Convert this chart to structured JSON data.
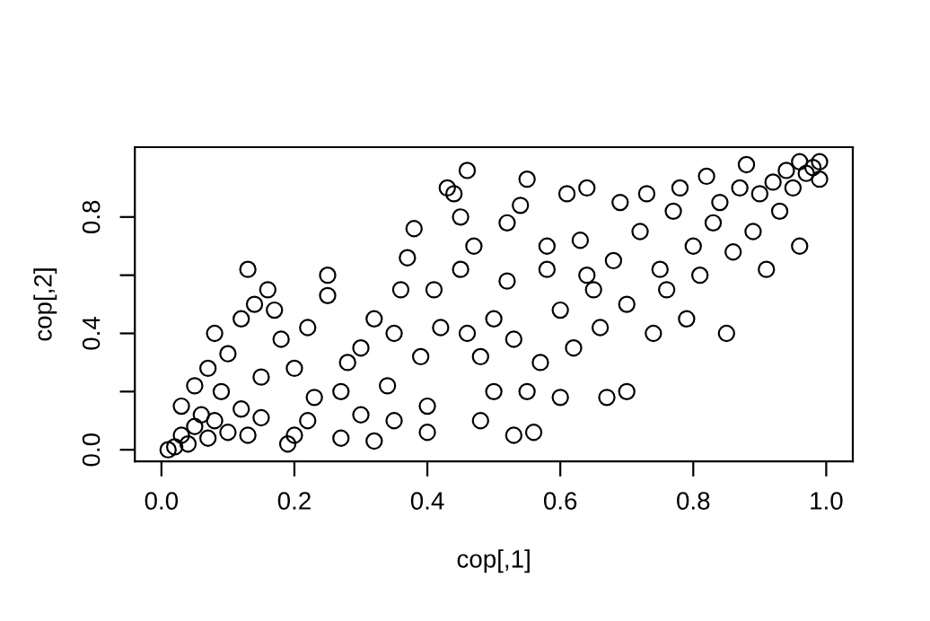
{
  "chart_data": {
    "type": "scatter",
    "xlabel": "cop[,1]",
    "ylabel": "cop[,2]",
    "marker": "circle",
    "grid": false,
    "legend": false,
    "xlim": [
      -0.04,
      1.04
    ],
    "ylim": [
      -0.04,
      1.04
    ],
    "xticks": [
      {
        "value": 0,
        "label": "0.0"
      },
      {
        "value": 0.2,
        "label": "0.2"
      },
      {
        "value": 0.4,
        "label": "0.4"
      },
      {
        "value": 0.6,
        "label": "0.6"
      },
      {
        "value": 0.8,
        "label": "0.8"
      },
      {
        "value": 1,
        "label": "1.0"
      }
    ],
    "yticks": [
      {
        "value": 0,
        "label": "0.0"
      },
      {
        "value": 0.2,
        "label": null
      },
      {
        "value": 0.4,
        "label": "0.4"
      },
      {
        "value": 0.6,
        "label": null
      },
      {
        "value": 0.8,
        "label": "0.8"
      }
    ],
    "series": [
      {
        "color": "#000000",
        "x": [
          0.01,
          0.02,
          0.03,
          0.04,
          0.05,
          0.06,
          0.07,
          0.08,
          0.1,
          0.12,
          0.13,
          0.15,
          0.03,
          0.05,
          0.07,
          0.08,
          0.1,
          0.12,
          0.14,
          0.13,
          0.16,
          0.17,
          0.18,
          0.19,
          0.2,
          0.22,
          0.23,
          0.2,
          0.22,
          0.25,
          0.27,
          0.28,
          0.25,
          0.3,
          0.3,
          0.32,
          0.32,
          0.34,
          0.35,
          0.36,
          0.37,
          0.38,
          0.39,
          0.4,
          0.4,
          0.42,
          0.43,
          0.44,
          0.45,
          0.45,
          0.46,
          0.47,
          0.48,
          0.48,
          0.5,
          0.5,
          0.52,
          0.53,
          0.54,
          0.55,
          0.55,
          0.56,
          0.57,
          0.58,
          0.6,
          0.61,
          0.62,
          0.63,
          0.64,
          0.65,
          0.66,
          0.67,
          0.68,
          0.69,
          0.7,
          0.7,
          0.72,
          0.73,
          0.74,
          0.75,
          0.76,
          0.77,
          0.78,
          0.79,
          0.8,
          0.81,
          0.82,
          0.83,
          0.84,
          0.85,
          0.86,
          0.87,
          0.88,
          0.89,
          0.9,
          0.91,
          0.92,
          0.93,
          0.94,
          0.95,
          0.96,
          0.97,
          0.98,
          0.99,
          0.99,
          0.96,
          0.27,
          0.6,
          0.58,
          0.41,
          0.35,
          0.15,
          0.09,
          0.52,
          0.64,
          0.46,
          0.53
        ],
        "values": [
          0.0,
          0.01,
          0.05,
          0.02,
          0.08,
          0.12,
          0.04,
          0.1,
          0.06,
          0.14,
          0.05,
          0.11,
          0.15,
          0.22,
          0.28,
          0.4,
          0.33,
          0.45,
          0.5,
          0.62,
          0.55,
          0.48,
          0.38,
          0.02,
          0.05,
          0.1,
          0.18,
          0.28,
          0.42,
          0.6,
          0.2,
          0.3,
          0.53,
          0.35,
          0.12,
          0.03,
          0.45,
          0.22,
          0.4,
          0.55,
          0.66,
          0.76,
          0.32,
          0.15,
          0.06,
          0.42,
          0.9,
          0.88,
          0.8,
          0.62,
          0.96,
          0.7,
          0.32,
          0.1,
          0.45,
          0.2,
          0.58,
          0.38,
          0.84,
          0.93,
          0.2,
          0.06,
          0.3,
          0.62,
          0.48,
          0.88,
          0.35,
          0.72,
          0.9,
          0.55,
          0.42,
          0.18,
          0.65,
          0.85,
          0.5,
          0.2,
          0.75,
          0.88,
          0.4,
          0.62,
          0.55,
          0.82,
          0.9,
          0.45,
          0.7,
          0.6,
          0.94,
          0.78,
          0.85,
          0.4,
          0.68,
          0.9,
          0.98,
          0.75,
          0.88,
          0.62,
          0.92,
          0.82,
          0.96,
          0.9,
          0.7,
          0.95,
          0.97,
          0.99,
          0.93,
          0.99,
          0.04,
          0.18,
          0.7,
          0.55,
          0.1,
          0.25,
          0.2,
          0.78,
          0.6,
          0.4,
          0.05
        ]
      }
    ]
  }
}
